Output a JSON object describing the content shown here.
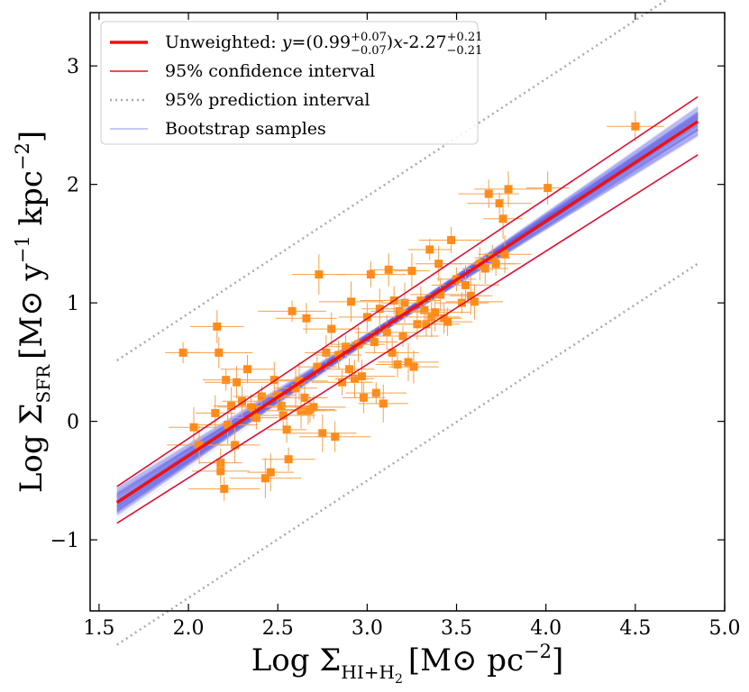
{
  "chart_data": {
    "type": "scatter",
    "xlabel": {
      "main": "Log Σ",
      "sub": "HI+H",
      "sub2": "2",
      "unit": "[M⊙ pc",
      "unit_sup": "−2",
      "unit_end": "]"
    },
    "ylabel": {
      "main": "Log Σ",
      "sub": "SFR",
      "unit": "[M⊙ y",
      "sup1": "−1",
      "mid": " kpc",
      "sup2": "−2",
      "end": "]"
    },
    "xlim": [
      1.45,
      5.0
    ],
    "ylim": [
      -1.6,
      3.45
    ],
    "xticks": [
      1.5,
      2.0,
      2.5,
      3.0,
      3.5,
      4.0,
      4.5,
      5.0
    ],
    "xtick_labels": [
      "1.5",
      "2.0",
      "2.5",
      "3.0",
      "3.5",
      "4.0",
      "4.5",
      "5.0"
    ],
    "yticks": [
      -1,
      0,
      1,
      2,
      3
    ],
    "ytick_labels": [
      "−1",
      "0",
      "1",
      "2",
      "3"
    ],
    "fit": {
      "slope": 0.99,
      "intercept": -2.27,
      "x_range": [
        1.6,
        4.85
      ]
    },
    "confidence": {
      "upper_at_start": -0.55,
      "upper_at_end": 2.74,
      "lower_at_start": -0.86,
      "lower_at_end": 2.25
    },
    "prediction": {
      "offset": 1.2
    },
    "legend": {
      "fit_label_pre": "Unweighted: ",
      "fit_y": "y",
      "fit_eq1": "=(0.99",
      "fit_eq1_sup": "+0.07",
      "fit_eq1_sub": "−0.07",
      "fit_eq2": ")",
      "fit_x": "x",
      "fit_eq3": "-2.27",
      "fit_eq3_sup": "+0.21",
      "fit_eq3_sub": "−0.21",
      "confidence": "95% confidence interval",
      "prediction": "95% prediction interval",
      "bootstrap": "Bootstrap samples"
    },
    "colors": {
      "fit": "#ee1111",
      "confidence": "#dd1133",
      "prediction": "#aaaaaa",
      "bootstrap": "#6666ee",
      "points": "#ff8c1a",
      "errorbars": "#f5a04a"
    },
    "points": [
      [
        1.97,
        0.58
      ],
      [
        2.03,
        -0.05
      ],
      [
        2.06,
        -0.2
      ],
      [
        2.15,
        0.07
      ],
      [
        2.16,
        0.8
      ],
      [
        2.17,
        0.58
      ],
      [
        2.18,
        -0.35
      ],
      [
        2.18,
        -0.42
      ],
      [
        2.2,
        -0.57
      ],
      [
        2.21,
        0.35
      ],
      [
        2.22,
        -0.03
      ],
      [
        2.24,
        0.13
      ],
      [
        2.26,
        -0.2
      ],
      [
        2.27,
        0.33
      ],
      [
        2.3,
        0.17
      ],
      [
        2.33,
        0.44
      ],
      [
        2.35,
        0.12
      ],
      [
        2.38,
        0.03
      ],
      [
        2.41,
        0.21
      ],
      [
        2.43,
        -0.48
      ],
      [
        2.46,
        -0.43
      ],
      [
        2.48,
        0.35
      ],
      [
        2.5,
        0.22
      ],
      [
        2.52,
        0.13
      ],
      [
        2.53,
        0.05
      ],
      [
        2.55,
        -0.07
      ],
      [
        2.56,
        -0.32
      ],
      [
        2.58,
        0.93
      ],
      [
        2.6,
        0.28
      ],
      [
        2.62,
        0.34
      ],
      [
        2.63,
        0.09
      ],
      [
        2.65,
        0.2
      ],
      [
        2.66,
        0.87
      ],
      [
        2.67,
        0.09
      ],
      [
        2.68,
        0.1
      ],
      [
        2.7,
        0.12
      ],
      [
        2.72,
        0.46
      ],
      [
        2.73,
        1.24
      ],
      [
        2.75,
        -0.1
      ],
      [
        2.77,
        0.58
      ],
      [
        2.8,
        0.78
      ],
      [
        2.82,
        -0.13
      ],
      [
        2.84,
        0.56
      ],
      [
        2.86,
        0.33
      ],
      [
        2.88,
        0.63
      ],
      [
        2.9,
        0.44
      ],
      [
        2.91,
        1.01
      ],
      [
        2.93,
        0.36
      ],
      [
        2.95,
        0.65
      ],
      [
        2.97,
        0.38
      ],
      [
        2.98,
        0.2
      ],
      [
        3.0,
        0.88
      ],
      [
        3.02,
        1.24
      ],
      [
        3.04,
        0.67
      ],
      [
        3.05,
        0.24
      ],
      [
        3.07,
        0.95
      ],
      [
        3.09,
        0.15
      ],
      [
        3.11,
        0.75
      ],
      [
        3.12,
        1.28
      ],
      [
        3.14,
        0.58
      ],
      [
        3.15,
        1.02
      ],
      [
        3.17,
        0.48
      ],
      [
        3.18,
        0.93
      ],
      [
        3.2,
        0.72
      ],
      [
        3.21,
        1.0
      ],
      [
        3.23,
        0.5
      ],
      [
        3.25,
        1.27
      ],
      [
        3.26,
        0.46
      ],
      [
        3.28,
        0.82
      ],
      [
        3.3,
        1.02
      ],
      [
        3.32,
        0.94
      ],
      [
        3.33,
        0.82
      ],
      [
        3.35,
        1.45
      ],
      [
        3.36,
        0.88
      ],
      [
        3.38,
        0.92
      ],
      [
        3.4,
        1.33
      ],
      [
        3.41,
        1.07
      ],
      [
        3.43,
        0.87
      ],
      [
        3.45,
        0.84
      ],
      [
        3.47,
        1.53
      ],
      [
        3.5,
        1.2
      ],
      [
        3.53,
        1.0
      ],
      [
        3.55,
        1.15
      ],
      [
        3.58,
        1.06
      ],
      [
        3.6,
        1.01
      ],
      [
        3.63,
        1.33
      ],
      [
        3.66,
        1.29
      ],
      [
        3.68,
        1.92
      ],
      [
        3.7,
        1.38
      ],
      [
        3.72,
        1.33
      ],
      [
        3.74,
        1.84
      ],
      [
        3.76,
        1.71
      ],
      [
        3.77,
        1.41
      ],
      [
        3.79,
        1.96
      ],
      [
        4.01,
        1.97
      ],
      [
        4.5,
        2.49
      ]
    ]
  }
}
